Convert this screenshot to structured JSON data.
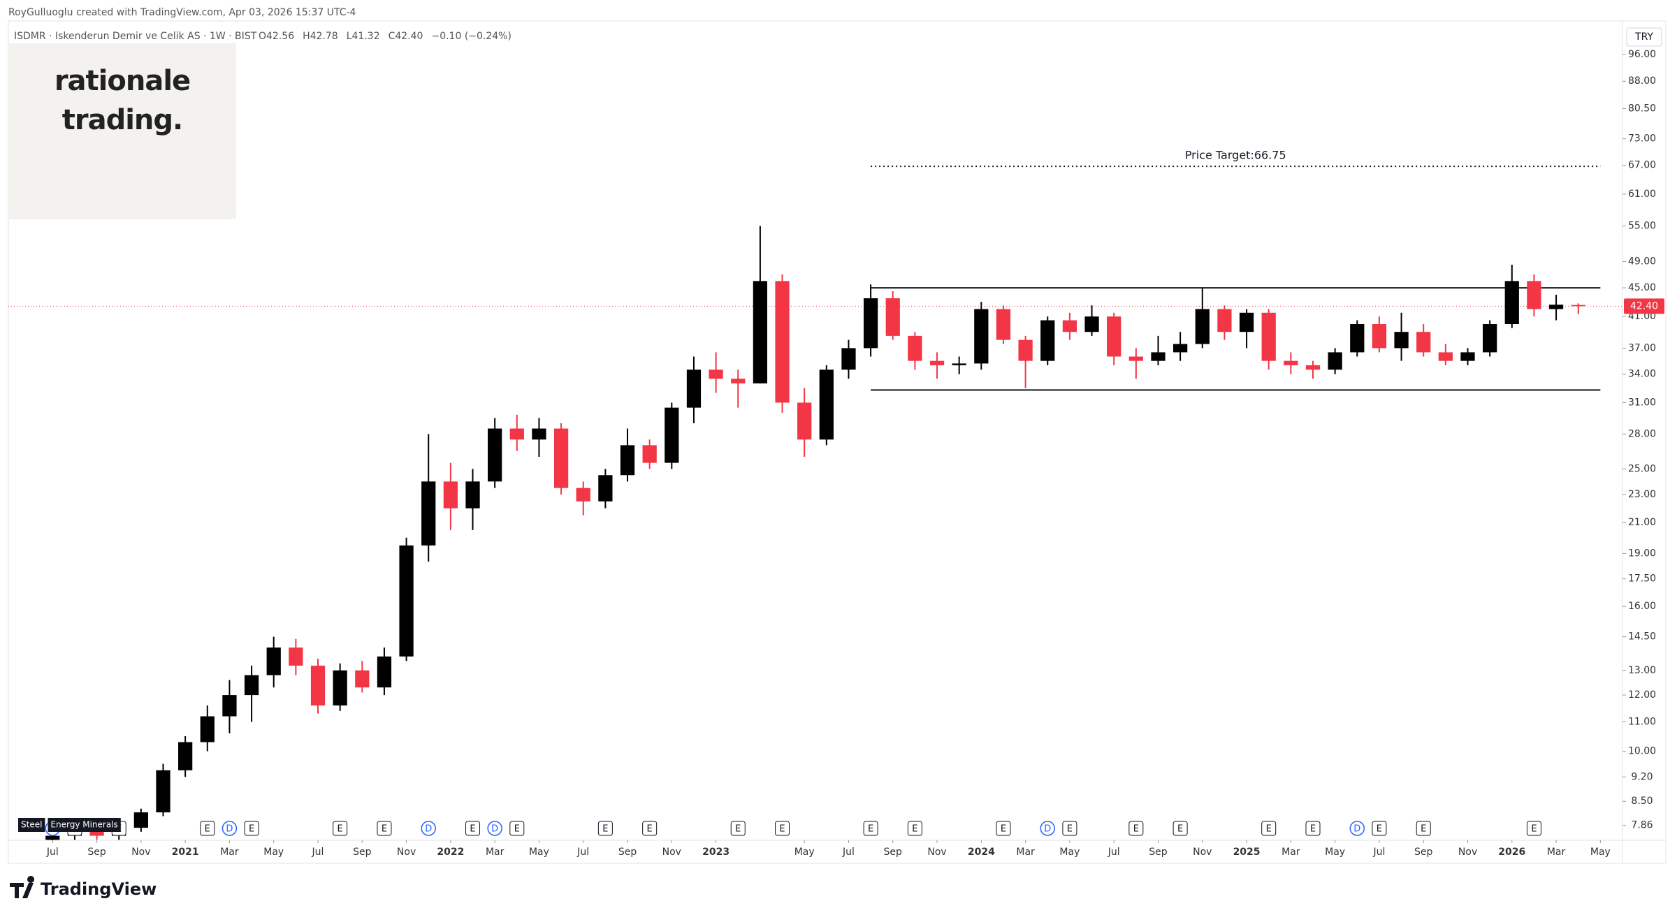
{
  "header": {
    "attribution": "RoyGulluoglu created with TradingView.com, Apr 03, 2026 15:37 UTC-4",
    "symbol": "ISDMR · Iskenderun Demir ve Celik AS · 1W · BIST",
    "ohlc_items": [
      "O42.56",
      "H42.78",
      "L41.32",
      "C42.40",
      "−0.10 (−0.24%)"
    ],
    "ohlc_color": "#f23645"
  },
  "logo_box": {
    "lines": [
      "rationale",
      "trading."
    ]
  },
  "footer": {
    "brand": "TradingView"
  },
  "chart_data": {
    "type": "candlestick",
    "log_scale": true,
    "grid": false,
    "currency": "TRY",
    "up_color": "#000000",
    "down_color": "#f23645",
    "xlim": [
      "2020-05",
      "2026-06"
    ],
    "ylim": [
      7.49,
      107
    ],
    "yticks": [
      {
        "value": 7.86,
        "label": "7.86"
      },
      {
        "value": 8.5,
        "label": "8.50"
      },
      {
        "value": 9.2,
        "label": "9.20"
      },
      {
        "value": 10,
        "label": "10.00"
      },
      {
        "value": 11,
        "label": "11.00"
      },
      {
        "value": 12,
        "label": "12.00"
      },
      {
        "value": 13,
        "label": "13.00"
      },
      {
        "value": 14.5,
        "label": "14.50"
      },
      {
        "value": 16,
        "label": "16.00"
      },
      {
        "value": 17.5,
        "label": "17.50"
      },
      {
        "value": 19,
        "label": "19.00"
      },
      {
        "value": 21,
        "label": "21.00"
      },
      {
        "value": 23,
        "label": "23.00"
      },
      {
        "value": 25,
        "label": "25.00"
      },
      {
        "value": 28,
        "label": "28.00"
      },
      {
        "value": 31,
        "label": "31.00"
      },
      {
        "value": 34,
        "label": "34.00"
      },
      {
        "value": 37,
        "label": "37.00"
      },
      {
        "value": 41,
        "label": "41.00"
      },
      {
        "value": 45,
        "label": "45.00"
      },
      {
        "value": 49,
        "label": "49.00"
      },
      {
        "value": 55,
        "label": "55.00"
      },
      {
        "value": 61,
        "label": "61.00"
      },
      {
        "value": 67,
        "label": "67.00"
      },
      {
        "value": 73,
        "label": "73.00"
      },
      {
        "value": 80.5,
        "label": "80.50"
      },
      {
        "value": 88,
        "label": "88.00"
      },
      {
        "value": 96,
        "label": "96.00"
      }
    ],
    "xticks": [
      {
        "value": "2020-07",
        "label": "Jul"
      },
      {
        "value": "2020-09",
        "label": "Sep"
      },
      {
        "value": "2020-11",
        "label": "Nov"
      },
      {
        "value": "2021-01",
        "label": "2021"
      },
      {
        "value": "2021-03",
        "label": "Mar"
      },
      {
        "value": "2021-05",
        "label": "May"
      },
      {
        "value": "2021-07",
        "label": "Jul"
      },
      {
        "value": "2021-09",
        "label": "Sep"
      },
      {
        "value": "2021-11",
        "label": "Nov"
      },
      {
        "value": "2022-01",
        "label": "2022"
      },
      {
        "value": "2022-03",
        "label": "Mar"
      },
      {
        "value": "2022-05",
        "label": "May"
      },
      {
        "value": "2022-07",
        "label": "Jul"
      },
      {
        "value": "2022-09",
        "label": "Sep"
      },
      {
        "value": "2022-11",
        "label": "Nov"
      },
      {
        "value": "2023-01",
        "label": "2023"
      },
      {
        "value": "2023-05",
        "label": "May"
      },
      {
        "value": "2023-07",
        "label": "Jul"
      },
      {
        "value": "2023-09",
        "label": "Sep"
      },
      {
        "value": "2023-11",
        "label": "Nov"
      },
      {
        "value": "2024-01",
        "label": "2024"
      },
      {
        "value": "2024-03",
        "label": "Mar"
      },
      {
        "value": "2024-05",
        "label": "May"
      },
      {
        "value": "2024-07",
        "label": "Jul"
      },
      {
        "value": "2024-09",
        "label": "Sep"
      },
      {
        "value": "2024-11",
        "label": "Nov"
      },
      {
        "value": "2025-01",
        "label": "2025"
      },
      {
        "value": "2025-03",
        "label": "Mar"
      },
      {
        "value": "2025-05",
        "label": "May"
      },
      {
        "value": "2025-07",
        "label": "Jul"
      },
      {
        "value": "2025-09",
        "label": "Sep"
      },
      {
        "value": "2025-11",
        "label": "Nov"
      },
      {
        "value": "2026-01",
        "label": "2026"
      },
      {
        "value": "2026-03",
        "label": "Mar"
      },
      {
        "value": "2026-05",
        "label": "May"
      }
    ],
    "x": [
      "2020-07",
      "2020-08",
      "2020-09",
      "2020-10",
      "2020-11",
      "2020-12",
      "2021-01",
      "2021-02",
      "2021-03",
      "2021-04",
      "2021-05",
      "2021-06",
      "2021-07",
      "2021-08",
      "2021-09",
      "2021-10",
      "2021-11",
      "2021-12",
      "2022-01",
      "2022-02",
      "2022-03",
      "2022-04",
      "2022-05",
      "2022-06",
      "2022-07",
      "2022-08",
      "2022-09",
      "2022-10",
      "2022-11",
      "2022-12",
      "2023-01",
      "2023-02",
      "2023-03",
      "2023-04",
      "2023-05",
      "2023-06",
      "2023-07",
      "2023-08",
      "2023-09",
      "2023-10",
      "2023-11",
      "2023-12",
      "2024-01",
      "2024-02",
      "2024-03",
      "2024-04",
      "2024-05",
      "2024-06",
      "2024-07",
      "2024-08",
      "2024-09",
      "2024-10",
      "2024-11",
      "2024-12",
      "2025-01",
      "2025-02",
      "2025-03",
      "2025-04",
      "2025-05",
      "2025-06",
      "2025-07",
      "2025-08",
      "2025-09",
      "2025-10",
      "2025-11",
      "2025-12",
      "2026-01",
      "2026-02",
      "2026-03",
      "2026-04"
    ],
    "ohlc": [
      [
        7.5,
        7.8,
        7.4,
        7.6
      ],
      [
        7.6,
        7.9,
        7.5,
        7.7
      ],
      [
        7.7,
        7.9,
        7.5,
        7.6
      ],
      [
        7.6,
        7.9,
        7.5,
        7.8
      ],
      [
        7.8,
        8.3,
        7.7,
        8.2
      ],
      [
        8.2,
        9.6,
        8.1,
        9.4
      ],
      [
        9.4,
        10.5,
        9.2,
        10.3
      ],
      [
        10.3,
        11.6,
        10.0,
        11.2
      ],
      [
        11.2,
        12.6,
        10.6,
        12.0
      ],
      [
        12.0,
        13.2,
        11.0,
        12.8
      ],
      [
        12.8,
        14.5,
        12.3,
        14.0
      ],
      [
        14.0,
        14.4,
        12.8,
        13.2
      ],
      [
        13.2,
        13.5,
        11.3,
        11.6
      ],
      [
        11.6,
        13.3,
        11.4,
        13.0
      ],
      [
        13.0,
        13.4,
        12.1,
        12.3
      ],
      [
        12.3,
        14.0,
        12.0,
        13.6
      ],
      [
        13.6,
        20.0,
        13.4,
        19.5
      ],
      [
        19.5,
        28.0,
        18.5,
        24.0
      ],
      [
        24.0,
        25.5,
        20.5,
        22.0
      ],
      [
        22.0,
        25.0,
        20.5,
        24.0
      ],
      [
        24.0,
        29.5,
        23.5,
        28.5
      ],
      [
        28.5,
        29.8,
        26.5,
        27.5
      ],
      [
        27.5,
        29.5,
        26.0,
        28.5
      ],
      [
        28.5,
        29.0,
        23.0,
        23.5
      ],
      [
        23.5,
        24.0,
        21.5,
        22.5
      ],
      [
        22.5,
        25.0,
        22.0,
        24.5
      ],
      [
        24.5,
        28.5,
        24.0,
        27.0
      ],
      [
        27.0,
        27.5,
        25.0,
        25.5
      ],
      [
        25.5,
        31.0,
        25.0,
        30.5
      ],
      [
        30.5,
        36.0,
        29.0,
        34.5
      ],
      [
        34.5,
        36.5,
        32.0,
        33.5
      ],
      [
        33.5,
        34.5,
        30.5,
        33.0
      ],
      [
        33.0,
        55.0,
        33.0,
        46.0
      ],
      [
        46.0,
        47.0,
        30.0,
        31.0
      ],
      [
        31.0,
        32.5,
        26.0,
        27.5
      ],
      [
        27.5,
        35.0,
        27.0,
        34.5
      ],
      [
        34.5,
        38.0,
        33.5,
        37.0
      ],
      [
        37.0,
        45.5,
        36.0,
        43.5
      ],
      [
        43.5,
        44.5,
        38.0,
        38.5
      ],
      [
        38.5,
        39.0,
        34.5,
        35.5
      ],
      [
        35.5,
        36.5,
        33.5,
        35.0
      ],
      [
        35.0,
        36.0,
        34.0,
        35.2
      ],
      [
        35.2,
        43.0,
        34.5,
        42.0
      ],
      [
        42.0,
        42.5,
        37.5,
        38.0
      ],
      [
        38.0,
        38.5,
        32.5,
        35.5
      ],
      [
        35.5,
        41.0,
        35.0,
        40.5
      ],
      [
        40.5,
        41.5,
        38.0,
        39.0
      ],
      [
        39.0,
        42.5,
        38.5,
        41.0
      ],
      [
        41.0,
        41.5,
        35.0,
        36.0
      ],
      [
        36.0,
        37.0,
        33.5,
        35.5
      ],
      [
        35.5,
        38.5,
        35.0,
        36.5
      ],
      [
        36.5,
        39.0,
        35.5,
        37.5
      ],
      [
        37.5,
        45.0,
        37.0,
        42.0
      ],
      [
        42.0,
        42.5,
        38.0,
        39.0
      ],
      [
        39.0,
        42.0,
        37.0,
        41.5
      ],
      [
        41.5,
        42.0,
        34.5,
        35.5
      ],
      [
        35.5,
        36.5,
        34.0,
        35.0
      ],
      [
        35.0,
        35.5,
        33.5,
        34.5
      ],
      [
        34.5,
        37.0,
        34.0,
        36.5
      ],
      [
        36.5,
        40.5,
        36.0,
        40.0
      ],
      [
        40.0,
        41.0,
        36.5,
        37.0
      ],
      [
        37.0,
        41.5,
        35.5,
        39.0
      ],
      [
        39.0,
        40.0,
        36.0,
        36.5
      ],
      [
        36.5,
        37.5,
        35.0,
        35.5
      ],
      [
        35.5,
        37.0,
        35.0,
        36.5
      ],
      [
        36.5,
        40.5,
        36.0,
        40.0
      ],
      [
        40.0,
        48.5,
        39.5,
        46.0
      ],
      [
        46.0,
        47.0,
        41.0,
        42.0
      ],
      [
        42.0,
        44.0,
        40.5,
        42.6
      ],
      [
        42.56,
        42.78,
        41.32,
        42.4
      ]
    ],
    "last_price": {
      "value": 42.4,
      "label": "42.40",
      "color": "#f23645"
    },
    "levels": [
      {
        "value": 45,
        "from": "2023-08",
        "to": "2026-05",
        "style": "solid"
      },
      {
        "value": 32.3,
        "from": "2023-08",
        "to": "2026-05",
        "style": "solid"
      },
      {
        "value": 66.75,
        "from": "2023-08",
        "to": "2026-05",
        "style": "dotted",
        "label": "Price Target:66.75"
      }
    ],
    "events": [
      {
        "x": "2020-07",
        "label": "D"
      },
      {
        "x": "2020-08",
        "label": "E"
      },
      {
        "x": "2020-10",
        "label": "E"
      },
      {
        "x": "2021-02",
        "label": "E"
      },
      {
        "x": "2021-03",
        "label": "D"
      },
      {
        "x": "2021-04",
        "label": "E"
      },
      {
        "x": "2021-08",
        "label": "E"
      },
      {
        "x": "2021-10",
        "label": "E"
      },
      {
        "x": "2021-12",
        "label": "D"
      },
      {
        "x": "2022-02",
        "label": "E"
      },
      {
        "x": "2022-03",
        "label": "D"
      },
      {
        "x": "2022-04",
        "label": "E"
      },
      {
        "x": "2022-08",
        "label": "E"
      },
      {
        "x": "2022-10",
        "label": "E"
      },
      {
        "x": "2023-02",
        "label": "E"
      },
      {
        "x": "2023-04",
        "label": "E"
      },
      {
        "x": "2023-08",
        "label": "E"
      },
      {
        "x": "2023-10",
        "label": "E"
      },
      {
        "x": "2024-02",
        "label": "E"
      },
      {
        "x": "2024-04",
        "label": "D"
      },
      {
        "x": "2024-05",
        "label": "E"
      },
      {
        "x": "2024-08",
        "label": "E"
      },
      {
        "x": "2024-10",
        "label": "E"
      },
      {
        "x": "2025-02",
        "label": "E"
      },
      {
        "x": "2025-04",
        "label": "E"
      },
      {
        "x": "2025-06",
        "label": "D"
      },
      {
        "x": "2025-07",
        "label": "E"
      },
      {
        "x": "2025-09",
        "label": "E"
      },
      {
        "x": "2026-02",
        "label": "E"
      }
    ],
    "sector_tags": [
      "Steel",
      "Energy Minerals"
    ]
  }
}
